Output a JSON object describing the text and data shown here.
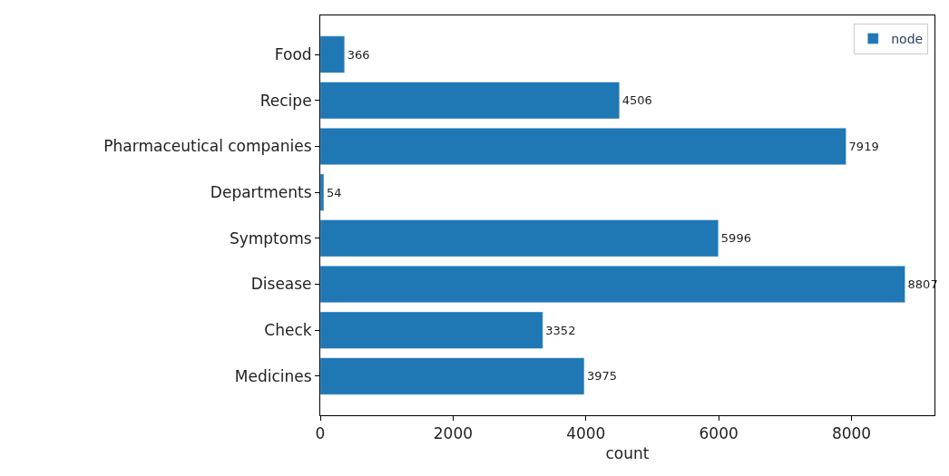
{
  "chart_data": {
    "type": "bar",
    "orientation": "horizontal",
    "xlabel": "count",
    "categories": [
      "Food",
      "Recipe",
      "Pharmaceutical companies",
      "Departments",
      "Symptoms",
      "Disease",
      "Check",
      "Medicines"
    ],
    "series": [
      {
        "name": "node",
        "color": "#1f77b4",
        "values": [
          366,
          4506,
          7919,
          54,
          5996,
          8807,
          3352,
          3975
        ]
      }
    ],
    "xlim": [
      0,
      9250
    ],
    "xticks": [
      0,
      2000,
      4000,
      6000,
      8000
    ],
    "data_labels": true,
    "legend": "top right"
  }
}
